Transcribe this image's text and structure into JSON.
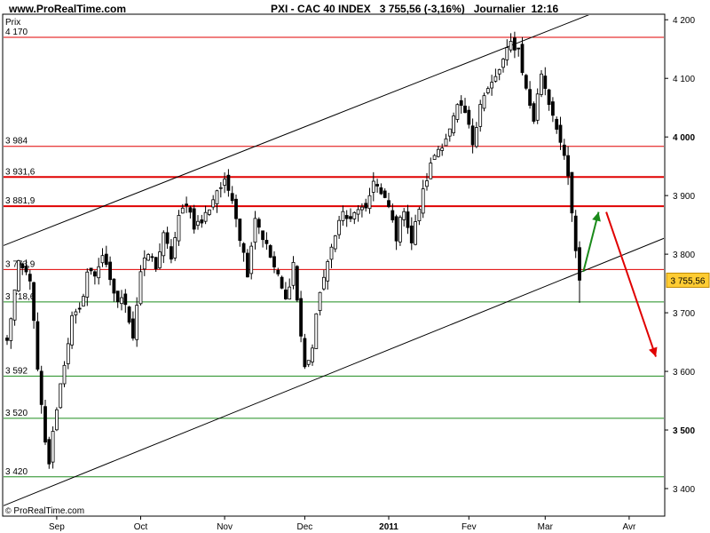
{
  "header": {
    "site": "www.ProRealTime.com",
    "title": "PXI - CAC 40 INDEX   3 755,56 (-3,16%)   Journalier  12:16"
  },
  "copyright": "ProRealTime.com",
  "chart_data": {
    "type": "candlestick",
    "instrument": "PXI - CAC 40 INDEX",
    "timeframe": "Journalier",
    "time": "12:16",
    "last_price": 3755.56,
    "last_price_label": "3 755,56",
    "change_label": "-3,16%",
    "ylabel": "Prix",
    "ylim": [
      3360,
      4210
    ],
    "y_ticks": [
      {
        "value": 3400,
        "label": "3 400",
        "bold": false
      },
      {
        "value": 3500,
        "label": "3 500",
        "bold": true
      },
      {
        "value": 3600,
        "label": "3 600",
        "bold": false
      },
      {
        "value": 3700,
        "label": "3 700",
        "bold": false
      },
      {
        "value": 3800,
        "label": "3 800",
        "bold": false
      },
      {
        "value": 3900,
        "label": "3 900",
        "bold": false
      },
      {
        "value": 4000,
        "label": "4 000",
        "bold": true
      },
      {
        "value": 4100,
        "label": "4 100",
        "bold": false
      },
      {
        "value": 4200,
        "label": "4 200",
        "bold": false
      }
    ],
    "x_ticks": [
      {
        "label": "Sep",
        "bar": 13,
        "bold": false
      },
      {
        "label": "Oct",
        "bar": 35,
        "bold": false
      },
      {
        "label": "Nov",
        "bar": 57,
        "bold": false
      },
      {
        "label": "Dec",
        "bar": 78,
        "bold": false
      },
      {
        "label": "2011",
        "bar": 100,
        "bold": true
      },
      {
        "label": "Fev",
        "bar": 121,
        "bold": false
      },
      {
        "label": "Mar",
        "bar": 141,
        "bold": false
      },
      {
        "label": "Avr",
        "bar": 163,
        "bold": false
      }
    ],
    "horizontal_levels": [
      {
        "value": 4170,
        "label": "4 170",
        "color": "#e00000",
        "width": 1
      },
      {
        "value": 3984,
        "label": "3 984",
        "color": "#e00000",
        "width": 1
      },
      {
        "value": 3931.6,
        "label": "3 931,6",
        "color": "#e00000",
        "width": 2
      },
      {
        "value": 3881.9,
        "label": "3 881,9",
        "color": "#e00000",
        "width": 2
      },
      {
        "value": 3773.9,
        "label": "3 773,9",
        "color": "#e00000",
        "width": 1
      },
      {
        "value": 3718.6,
        "label": "3 718,6",
        "color": "#1e8c1e",
        "width": 1
      },
      {
        "value": 3592,
        "label": "3 592",
        "color": "#1e8c1e",
        "width": 1
      },
      {
        "value": 3520,
        "label": "3 520",
        "color": "#1e8c1e",
        "width": 1
      },
      {
        "value": 3420,
        "label": "3 420",
        "color": "#1e8c1e",
        "width": 1
      }
    ],
    "trend_lines": [
      {
        "from": {
          "bar": -2,
          "value": 3812
        },
        "to": {
          "bar": 155,
          "value": 4215
        },
        "color": "#000000"
      },
      {
        "from": {
          "bar": -2,
          "value": 3368
        },
        "to": {
          "bar": 174,
          "value": 3832
        },
        "color": "#000000"
      }
    ],
    "arrows": [
      {
        "from": {
          "bar": 151,
          "value": 3770
        },
        "to": {
          "bar": 155,
          "value": 3872
        },
        "color": "#1a8a1a"
      },
      {
        "from": {
          "bar": 157,
          "value": 3872
        },
        "to": {
          "bar": 170,
          "value": 3625
        },
        "color": "#e00000"
      }
    ],
    "price_anchors": [
      [
        0,
        3650
      ],
      [
        3,
        3780
      ],
      [
        6,
        3760
      ],
      [
        8,
        3600
      ],
      [
        10,
        3475
      ],
      [
        11,
        3445
      ],
      [
        13,
        3540
      ],
      [
        15,
        3615
      ],
      [
        17,
        3690
      ],
      [
        19,
        3700
      ],
      [
        21,
        3770
      ],
      [
        23,
        3765
      ],
      [
        25,
        3800
      ],
      [
        27,
        3750
      ],
      [
        29,
        3720
      ],
      [
        31,
        3720
      ],
      [
        33,
        3660
      ],
      [
        35,
        3770
      ],
      [
        37,
        3800
      ],
      [
        39,
        3780
      ],
      [
        41,
        3830
      ],
      [
        43,
        3795
      ],
      [
        45,
        3860
      ],
      [
        47,
        3890
      ],
      [
        49,
        3850
      ],
      [
        51,
        3855
      ],
      [
        53,
        3880
      ],
      [
        55,
        3910
      ],
      [
        57,
        3920
      ],
      [
        59,
        3900
      ],
      [
        61,
        3830
      ],
      [
        63,
        3770
      ],
      [
        65,
        3865
      ],
      [
        67,
        3830
      ],
      [
        69,
        3795
      ],
      [
        71,
        3760
      ],
      [
        73,
        3720
      ],
      [
        75,
        3785
      ],
      [
        77,
        3660
      ],
      [
        78,
        3605
      ],
      [
        80,
        3640
      ],
      [
        82,
        3740
      ],
      [
        84,
        3780
      ],
      [
        86,
        3840
      ],
      [
        88,
        3870
      ],
      [
        90,
        3855
      ],
      [
        92,
        3880
      ],
      [
        94,
        3870
      ],
      [
        96,
        3930
      ],
      [
        98,
        3900
      ],
      [
        100,
        3880
      ],
      [
        102,
        3830
      ],
      [
        104,
        3880
      ],
      [
        106,
        3820
      ],
      [
        108,
        3880
      ],
      [
        110,
        3930
      ],
      [
        112,
        3970
      ],
      [
        114,
        3990
      ],
      [
        116,
        4010
      ],
      [
        118,
        4050
      ],
      [
        120,
        4040
      ],
      [
        122,
        3990
      ],
      [
        124,
        4060
      ],
      [
        126,
        4080
      ],
      [
        128,
        4100
      ],
      [
        130,
        4130
      ],
      [
        132,
        4160
      ],
      [
        134,
        4150
      ],
      [
        136,
        4080
      ],
      [
        138,
        4030
      ],
      [
        140,
        4110
      ],
      [
        142,
        4060
      ],
      [
        144,
        4020
      ],
      [
        146,
        3960
      ],
      [
        147,
        3930
      ],
      [
        148,
        3870
      ],
      [
        149,
        3800
      ],
      [
        150,
        3755.56
      ]
    ]
  }
}
